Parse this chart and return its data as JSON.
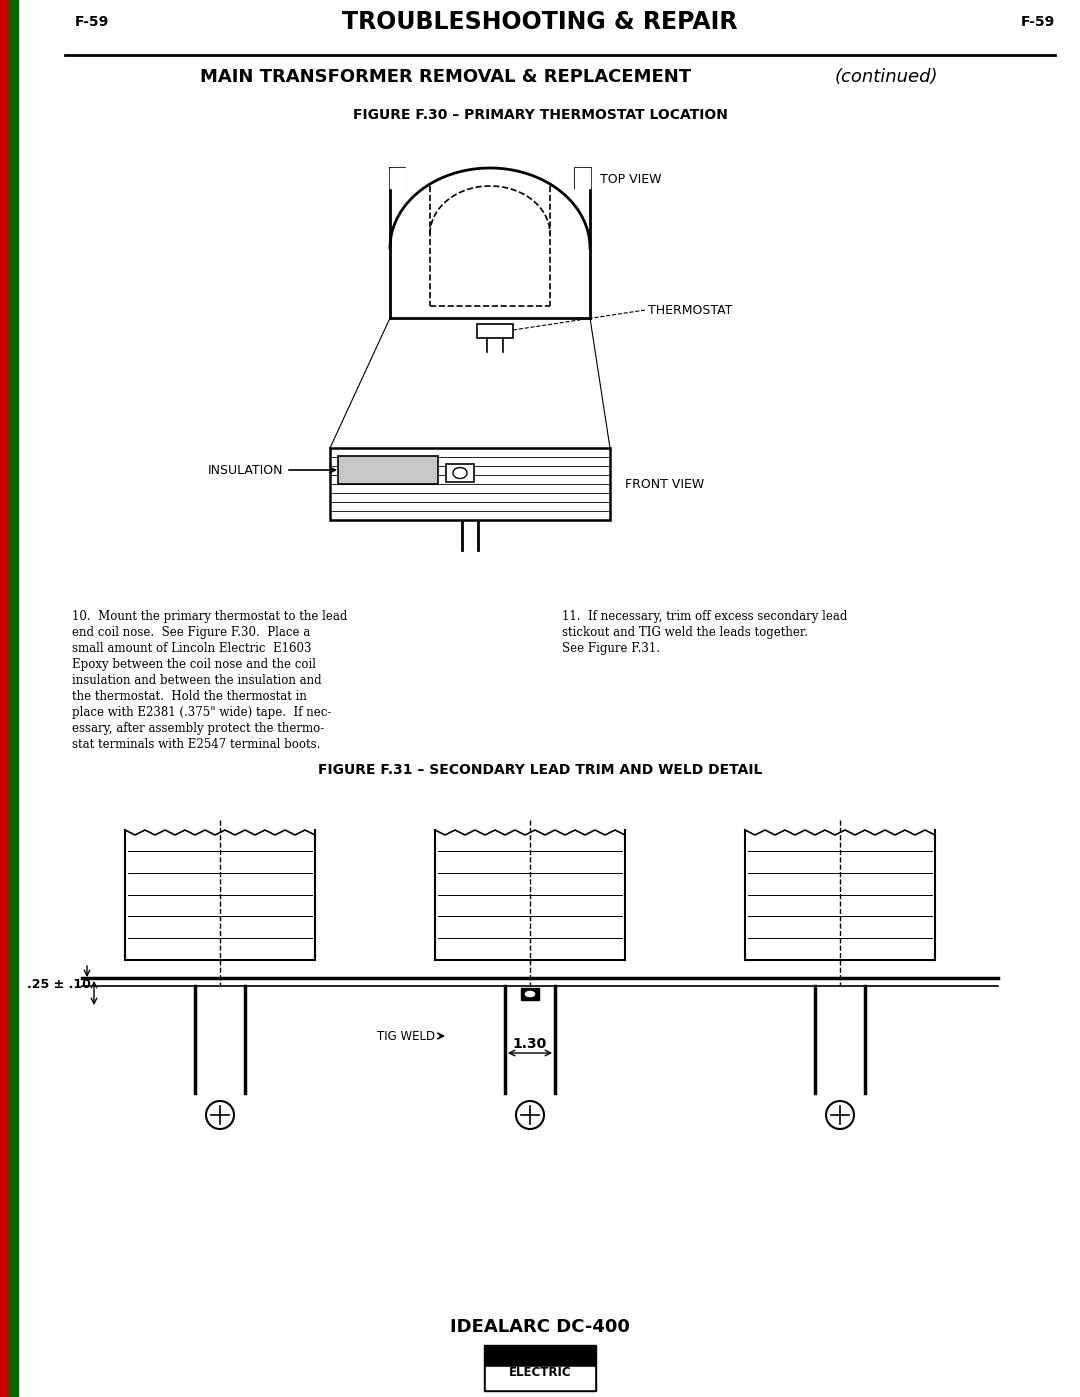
{
  "page_num": "F-59",
  "main_title": "TROUBLESHOOTING & REPAIR",
  "section_title": "MAIN TRANSFORMER REMOVAL & REPLACEMENT",
  "section_title_italic": "(continued)",
  "fig30_title": "FIGURE F.30 – PRIMARY THERMOSTAT LOCATION",
  "fig31_title": "FIGURE F.31 – SECONDARY LEAD TRIM AND WELD DETAIL",
  "bottom_title": "IDEALARC DC-400",
  "label_top_view": "TOP VIEW",
  "label_thermostat": "THERMOSTAT",
  "label_insulation": "INSULATION",
  "label_front_view": "FRONT VIEW",
  "label_tig_weld": "TIG WELD",
  "dim_025": ".25 ± .10",
  "dim_130": "1.30",
  "lines_left": [
    "10.  Mount the primary thermostat to the lead",
    "end coil nose.  See Figure F.30.  Place a",
    "small amount of Lincoln Electric  E1603",
    "Epoxy between the coil nose and the coil",
    "insulation and between the insulation and",
    "the thermostat.  Hold the thermostat in",
    "place with E2381 (.375\" wide) tape.  If nec-",
    "essary, after assembly protect the thermo-",
    "stat terminals with E2547 terminal boots."
  ],
  "lines_right": [
    "11.  If necessary, trim off excess secondary lead",
    "stickout and TIG weld the leads together.",
    "See Figure F.31."
  ],
  "bg_color": "#ffffff",
  "text_color": "#000000",
  "sidebar_red_color": "#cc0000",
  "sidebar_green_color": "#006600"
}
